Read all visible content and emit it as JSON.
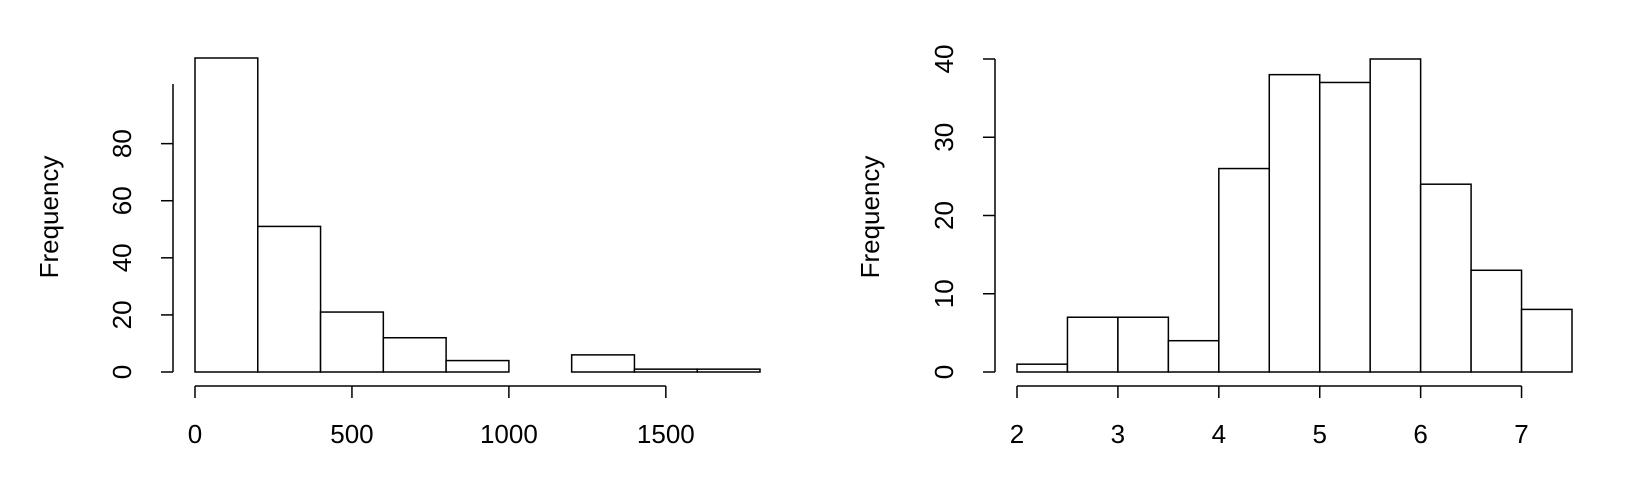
{
  "chart_data": [
    {
      "type": "bar",
      "subtype": "histogram",
      "title": "",
      "xlabel": "",
      "ylabel": "Frequency",
      "bins": [
        {
          "start": 0,
          "end": 200,
          "count": 110
        },
        {
          "start": 200,
          "end": 400,
          "count": 51
        },
        {
          "start": 400,
          "end": 600,
          "count": 21
        },
        {
          "start": 600,
          "end": 800,
          "count": 12
        },
        {
          "start": 800,
          "end": 1000,
          "count": 4
        },
        {
          "start": 1000,
          "end": 1200,
          "count": 0
        },
        {
          "start": 1200,
          "end": 1400,
          "count": 6
        },
        {
          "start": 1400,
          "end": 1600,
          "count": 1
        },
        {
          "start": 1600,
          "end": 1800,
          "count": 1
        }
      ],
      "xticks": [
        0,
        500,
        1000,
        1500
      ],
      "xtick_labels": [
        "0",
        "500",
        "1000",
        "1500"
      ],
      "yticks": [
        0,
        20,
        40,
        60,
        80
      ],
      "ytick_labels": [
        "0",
        "20",
        "40",
        "60",
        "80"
      ],
      "xlim": [
        0,
        1800
      ],
      "ylim": [
        0,
        110
      ],
      "grid": false,
      "fill_color": "#ffffff",
      "stroke_color": "#000000"
    },
    {
      "type": "bar",
      "subtype": "histogram",
      "title": "",
      "xlabel": "",
      "ylabel": "Frequency",
      "bins": [
        {
          "start": 2.0,
          "end": 2.5,
          "count": 1
        },
        {
          "start": 2.5,
          "end": 3.0,
          "count": 7
        },
        {
          "start": 3.0,
          "end": 3.5,
          "count": 7
        },
        {
          "start": 3.5,
          "end": 4.0,
          "count": 4
        },
        {
          "start": 4.0,
          "end": 4.5,
          "count": 26
        },
        {
          "start": 4.5,
          "end": 5.0,
          "count": 38
        },
        {
          "start": 5.0,
          "end": 5.5,
          "count": 37
        },
        {
          "start": 5.5,
          "end": 6.0,
          "count": 40
        },
        {
          "start": 6.0,
          "end": 6.5,
          "count": 24
        },
        {
          "start": 6.5,
          "end": 7.0,
          "count": 13
        },
        {
          "start": 7.0,
          "end": 7.5,
          "count": 8
        }
      ],
      "xticks": [
        2,
        3,
        4,
        5,
        6,
        7
      ],
      "xtick_labels": [
        "2",
        "3",
        "4",
        "5",
        "6",
        "7"
      ],
      "yticks": [
        0,
        10,
        20,
        30,
        40
      ],
      "ytick_labels": [
        "0",
        "10",
        "20",
        "30",
        "40"
      ],
      "xlim": [
        2,
        7.5
      ],
      "ylim": [
        0,
        40
      ],
      "grid": false,
      "fill_color": "#ffffff",
      "stroke_color": "#000000"
    }
  ]
}
